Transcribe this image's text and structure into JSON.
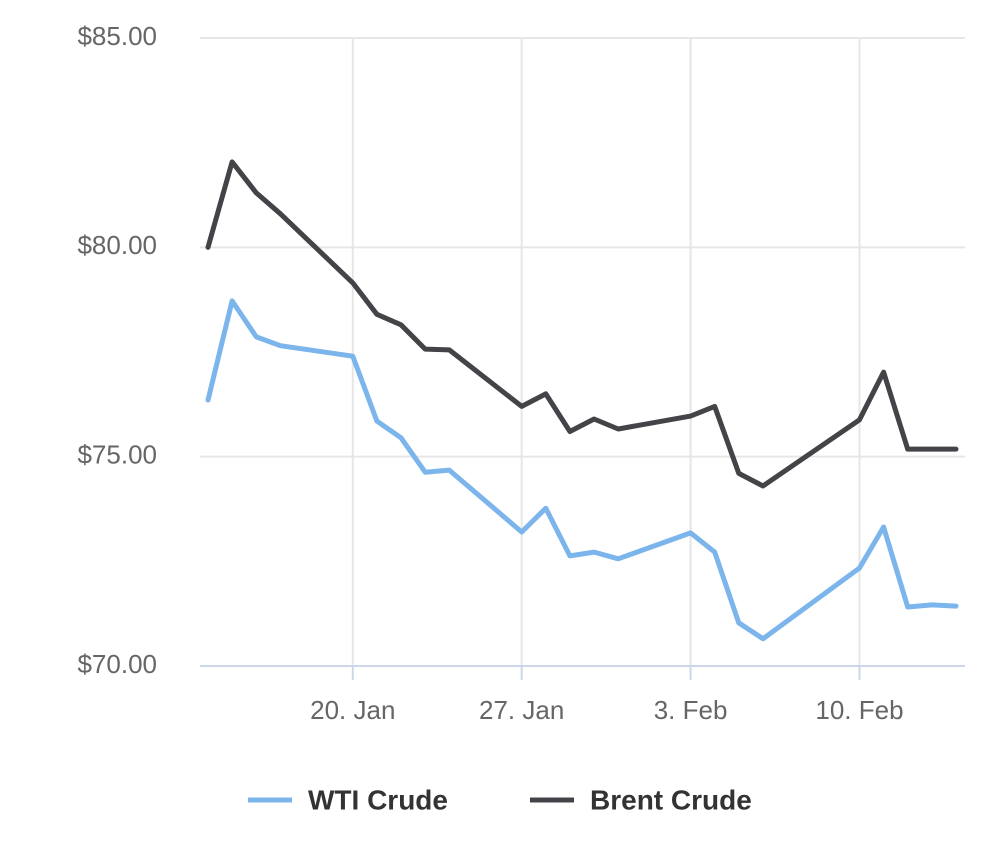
{
  "chart_data": {
    "type": "line",
    "x": [
      "14. Jan",
      "15. Jan",
      "16. Jan",
      "17. Jan",
      "20. Jan",
      "21. Jan",
      "22. Jan",
      "23. Jan",
      "24. Jan",
      "27. Jan",
      "28. Jan",
      "29. Jan",
      "30. Jan",
      "31. Jan",
      "3. Feb",
      "4. Feb",
      "5. Feb",
      "6. Feb",
      "10. Feb",
      "11. Feb",
      "12. Feb",
      "13. Feb",
      "14. Feb"
    ],
    "series": [
      {
        "name": "WTI Crude",
        "color": "#7cb5ec",
        "values": [
          76.35,
          78.72,
          77.86,
          77.65,
          77.4,
          75.85,
          75.45,
          74.63,
          74.68,
          73.2,
          73.77,
          72.63,
          72.72,
          72.56,
          73.18,
          72.72,
          71.03,
          70.65,
          72.34,
          73.32,
          71.41,
          71.46,
          71.43
        ]
      },
      {
        "name": "Brent Crude",
        "color": "#434348",
        "values": [
          80.0,
          82.04,
          81.3,
          80.8,
          79.15,
          78.4,
          78.15,
          77.57,
          77.55,
          76.2,
          76.5,
          75.6,
          75.9,
          75.66,
          75.97,
          76.2,
          74.6,
          74.3,
          75.88,
          77.02,
          75.18,
          75.18,
          75.18
        ]
      }
    ],
    "xlim": [
      "14. Jan",
      "14. Feb"
    ],
    "xticks": [
      "20. Jan",
      "27. Jan",
      "3. Feb",
      "10. Feb"
    ],
    "ylim": [
      70,
      85
    ],
    "yticks": [
      {
        "value": 70,
        "label": "$70.00"
      },
      {
        "value": 75,
        "label": "$75.00"
      },
      {
        "value": 80,
        "label": "$80.00"
      },
      {
        "value": 85,
        "label": "$85.00"
      }
    ],
    "grid": true
  }
}
